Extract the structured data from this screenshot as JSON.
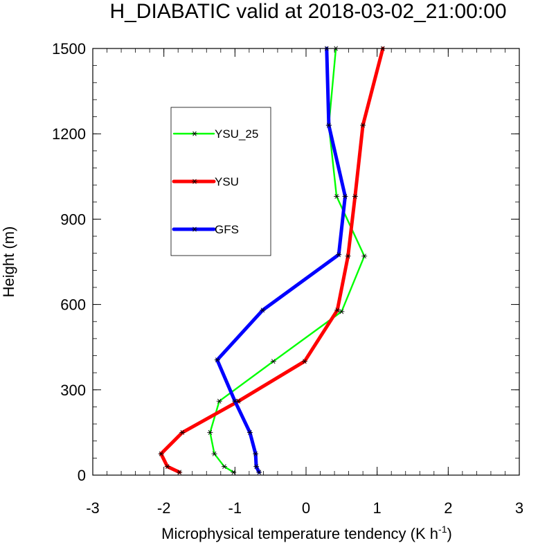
{
  "chart_data": {
    "type": "line",
    "title": "H_DIABATIC valid at 2018-03-02_21:00:00",
    "xlabel": "Microphysical temperature tendency (K h",
    "xlabel_sup": "-1",
    "xlabel_tail": ")",
    "ylabel": "Height (m)",
    "xlim": [
      -3,
      3
    ],
    "ylim": [
      0,
      1500
    ],
    "xticks": [
      -3,
      -2,
      -1,
      0,
      1,
      2,
      3
    ],
    "xtick_labels": [
      "-3",
      "-2",
      "-1",
      "0",
      "1",
      "2",
      "3"
    ],
    "yticks": [
      0,
      300,
      600,
      900,
      1200,
      1500
    ],
    "ytick_labels": [
      "0",
      "300",
      "600",
      "900",
      "1200",
      "1500"
    ],
    "grid": false,
    "legend_position": "upper-left inside plot",
    "series": [
      {
        "name": "YSU_25",
        "color": "#00ff00",
        "marker": "asterisk",
        "points": [
          {
            "x": -1.02,
            "y": 10
          },
          {
            "x": -1.15,
            "y": 30
          },
          {
            "x": -1.29,
            "y": 75
          },
          {
            "x": -1.35,
            "y": 150
          },
          {
            "x": -1.22,
            "y": 260
          },
          {
            "x": -0.46,
            "y": 400
          },
          {
            "x": 0.5,
            "y": 575
          },
          {
            "x": 0.82,
            "y": 770
          },
          {
            "x": 0.43,
            "y": 980
          },
          {
            "x": 0.32,
            "y": 1230
          },
          {
            "x": 0.42,
            "y": 1500
          }
        ]
      },
      {
        "name": "YSU",
        "color": "#ff0000",
        "marker": "asterisk",
        "points": [
          {
            "x": -1.78,
            "y": 10
          },
          {
            "x": -1.95,
            "y": 30
          },
          {
            "x": -2.04,
            "y": 75
          },
          {
            "x": -1.74,
            "y": 150
          },
          {
            "x": -0.95,
            "y": 260
          },
          {
            "x": -0.02,
            "y": 400
          },
          {
            "x": 0.44,
            "y": 580
          },
          {
            "x": 0.59,
            "y": 770
          },
          {
            "x": 0.69,
            "y": 980
          },
          {
            "x": 0.8,
            "y": 1230
          },
          {
            "x": 1.08,
            "y": 1500
          }
        ]
      },
      {
        "name": "GFS",
        "color": "#0000ff",
        "marker": "asterisk",
        "points": [
          {
            "x": -0.66,
            "y": 10
          },
          {
            "x": -0.7,
            "y": 30
          },
          {
            "x": -0.71,
            "y": 75
          },
          {
            "x": -0.79,
            "y": 150
          },
          {
            "x": -1.0,
            "y": 260
          },
          {
            "x": -1.25,
            "y": 405
          },
          {
            "x": -0.61,
            "y": 580
          },
          {
            "x": 0.46,
            "y": 775
          },
          {
            "x": 0.55,
            "y": 980
          },
          {
            "x": 0.32,
            "y": 1230
          },
          {
            "x": 0.29,
            "y": 1500
          }
        ]
      }
    ]
  }
}
